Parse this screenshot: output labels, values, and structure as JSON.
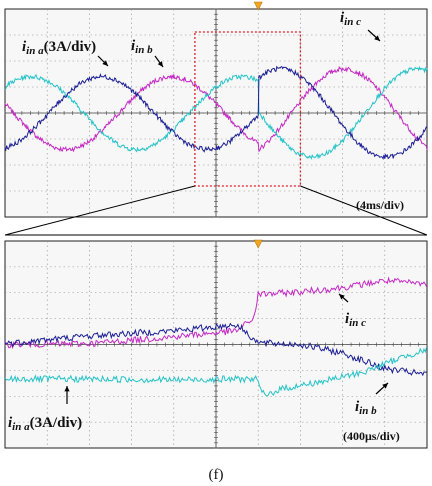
{
  "figure_label": "(f)",
  "colors": {
    "a": "#25c3c8",
    "b": "#1c1f93",
    "c": "#c42ac4",
    "marker": "#f2a520",
    "zoom_box": "#e0202a",
    "grid": "#8c8c8c"
  },
  "icons": {
    "trigger_marker": "orange-triangle-icon"
  },
  "chart_data": [
    {
      "type": "line",
      "panel": "top",
      "title": "",
      "time_scale": "4ms/div",
      "current_scale": "3A/div",
      "grid_divisions": {
        "x": 10,
        "y": 8
      },
      "time_range_ms": [
        -24,
        16
      ],
      "current_range_A": [
        -12,
        12
      ],
      "event_time_ms": 0,
      "series": [
        {
          "key": "a",
          "label_main": "i",
          "label_sub": "in a",
          "label_suffix": "(3A/div)",
          "amp_before_A": 4.2,
          "amp_after_A": 5.1,
          "freq_hz": 50
        },
        {
          "key": "b",
          "label_main": "i",
          "label_sub": "in b",
          "label_suffix": "",
          "amp_before_A": 4.2,
          "amp_after_A": 5.1,
          "freq_hz": 50
        },
        {
          "key": "c",
          "label_main": "i",
          "label_sub": "in c",
          "label_suffix": "",
          "amp_before_A": 4.2,
          "amp_after_A": 5.1,
          "freq_hz": 50
        }
      ],
      "zoom_window_ms": [
        -6,
        4
      ],
      "scale_note": "(4ms/div)"
    },
    {
      "type": "line",
      "panel": "bottom",
      "title": "",
      "time_scale": "400μs/div",
      "current_scale": "3A/div",
      "grid_divisions": {
        "x": 10,
        "y": 8
      },
      "time_range_us": [
        -2400,
        1600
      ],
      "current_range_A": [
        -12,
        12
      ],
      "event_time_us": 0,
      "series": [
        {
          "key": "a",
          "label_main": "i",
          "label_sub": "in a",
          "label_suffix": "(3A/div)",
          "points_us_A": [
            [
              -2400,
              -4.0
            ],
            [
              -1600,
              -4.0
            ],
            [
              -800,
              -4.1
            ],
            [
              -200,
              -4.0
            ],
            [
              -20,
              -4.0
            ],
            [
              60,
              -6.0
            ],
            [
              200,
              -5.2
            ],
            [
              600,
              -4.3
            ],
            [
              1000,
              -3.2
            ],
            [
              1400,
              -1.3
            ],
            [
              1600,
              -0.6
            ]
          ]
        },
        {
          "key": "b",
          "label_main": "i",
          "label_sub": "in b",
          "label_suffix": "",
          "points_us_A": [
            [
              -2400,
              0.1
            ],
            [
              -1600,
              1.0
            ],
            [
              -800,
              1.6
            ],
            [
              -200,
              2.3
            ],
            [
              0,
              0.2
            ],
            [
              400,
              0.0
            ],
            [
              800,
              -1.0
            ],
            [
              1200,
              -2.8
            ],
            [
              1600,
              -3.5
            ]
          ]
        },
        {
          "key": "c",
          "label_main": "i",
          "label_sub": "in c",
          "label_suffix": "",
          "points_us_A": [
            [
              -2400,
              0.0
            ],
            [
              -1600,
              0.1
            ],
            [
              -800,
              0.9
            ],
            [
              -200,
              1.6
            ],
            [
              -40,
              3.1
            ],
            [
              0,
              5.8
            ],
            [
              400,
              6.1
            ],
            [
              800,
              6.6
            ],
            [
              1200,
              7.4
            ],
            [
              1600,
              7.0
            ]
          ]
        }
      ],
      "scale_note": "(400μs/div)"
    }
  ]
}
